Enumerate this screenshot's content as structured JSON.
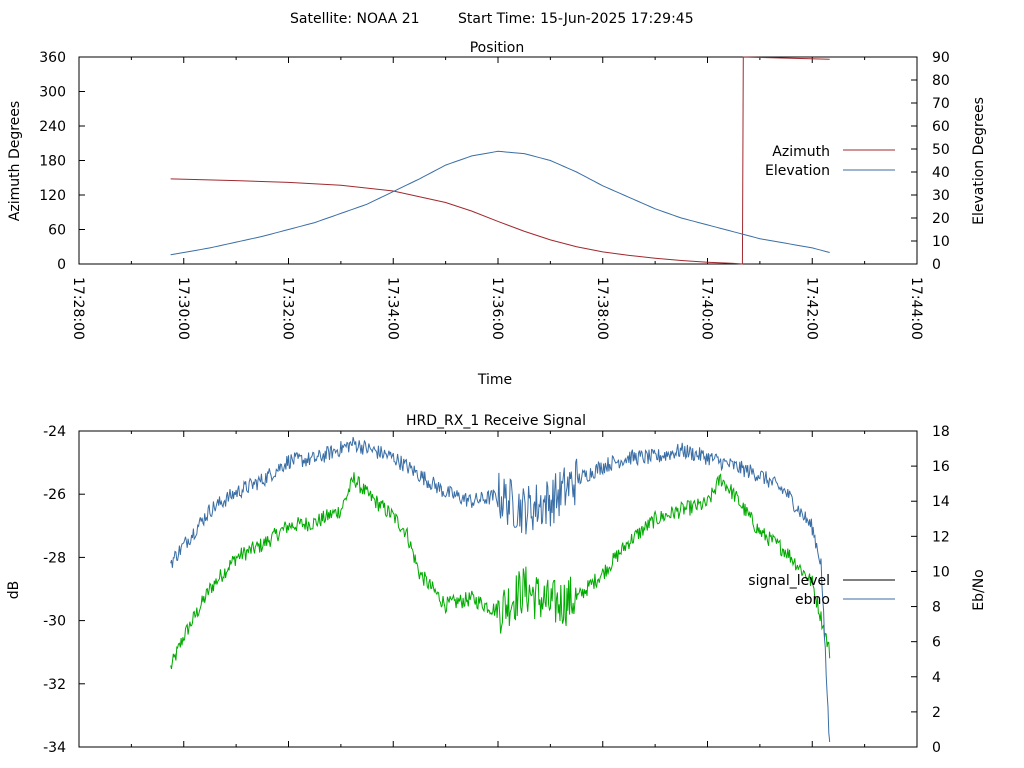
{
  "header": {
    "satellite_label": "Satellite: NOAA 21",
    "start_time_label": "Start Time: 15-Jun-2025 17:29:45"
  },
  "colors": {
    "azimuth": "#a0292e",
    "elevation": "#3a6ea5",
    "signal_level": "#000000",
    "ebno": "#3a6ea5",
    "signal_trace_green": "#00aa00",
    "axis": "#000000"
  },
  "chart_data": [
    {
      "type": "line",
      "title": "Position",
      "xlabel": "Time",
      "ylabel": "Azimuth Degrees",
      "y2label": "Elevation Degrees",
      "x_ticks": [
        "17:28:00",
        "17:30:00",
        "17:32:00",
        "17:34:00",
        "17:36:00",
        "17:38:00",
        "17:40:00",
        "17:42:00",
        "17:44:00"
      ],
      "x_range": [
        "17:28:00",
        "17:44:00"
      ],
      "ylim": [
        0,
        360
      ],
      "y2lim": [
        0,
        90
      ],
      "y_ticks": [
        "0",
        "60",
        "120",
        "180",
        "240",
        "300",
        "360"
      ],
      "y2_ticks": [
        "0",
        "10",
        "20",
        "30",
        "40",
        "50",
        "60",
        "70",
        "80",
        "90"
      ],
      "legend_position": "right",
      "series": [
        {
          "name": "Azimuth",
          "axis": "left",
          "points": [
            [
              "17:29:45",
              148
            ],
            [
              "17:31:00",
              145
            ],
            [
              "17:32:00",
              142
            ],
            [
              "17:33:00",
              137
            ],
            [
              "17:34:00",
              127
            ],
            [
              "17:35:00",
              107
            ],
            [
              "17:35:30",
              92
            ],
            [
              "17:36:00",
              74
            ],
            [
              "17:36:30",
              57
            ],
            [
              "17:37:00",
              42
            ],
            [
              "17:37:30",
              30
            ],
            [
              "17:38:00",
              21
            ],
            [
              "17:38:30",
              15
            ],
            [
              "17:39:00",
              10
            ],
            [
              "17:39:30",
              6
            ],
            [
              "17:40:00",
              3
            ],
            [
              "17:40:30",
              1
            ],
            [
              "17:40:40",
              0
            ],
            [
              "17:40:41",
              360
            ],
            [
              "17:41:30",
              358
            ],
            [
              "17:42:20",
              356
            ]
          ]
        },
        {
          "name": "Elevation",
          "axis": "right",
          "points": [
            [
              "17:29:45",
              4
            ],
            [
              "17:30:30",
              7
            ],
            [
              "17:31:30",
              12
            ],
            [
              "17:32:30",
              18
            ],
            [
              "17:33:30",
              26
            ],
            [
              "17:34:30",
              37
            ],
            [
              "17:35:00",
              43
            ],
            [
              "17:35:30",
              47
            ],
            [
              "17:36:00",
              49
            ],
            [
              "17:36:30",
              48
            ],
            [
              "17:37:00",
              45
            ],
            [
              "17:37:30",
              40
            ],
            [
              "17:38:00",
              34
            ],
            [
              "17:38:30",
              29
            ],
            [
              "17:39:00",
              24
            ],
            [
              "17:39:30",
              20
            ],
            [
              "17:40:00",
              17
            ],
            [
              "17:40:30",
              14
            ],
            [
              "17:41:00",
              11
            ],
            [
              "17:41:30",
              9
            ],
            [
              "17:42:00",
              7
            ],
            [
              "17:42:20",
              5
            ]
          ]
        }
      ]
    },
    {
      "type": "line",
      "title": "HRD_RX_1 Receive Signal",
      "xlabel": "",
      "ylabel": "dB",
      "y2label": "Eb/No",
      "ylim": [
        -34,
        -24
      ],
      "y2lim": [
        0,
        18
      ],
      "y_ticks": [
        "-24",
        "-26",
        "-28",
        "-30",
        "-32",
        "-34"
      ],
      "y2_ticks": [
        "0",
        "2",
        "4",
        "6",
        "8",
        "10",
        "12",
        "14",
        "16",
        "18"
      ],
      "x_range": [
        "17:28:00",
        "17:44:00"
      ],
      "legend_position": "right",
      "series": [
        {
          "name": "signal_level",
          "axis": "left",
          "drawn_color": "green",
          "points": [
            [
              "17:29:45",
              -31.5
            ],
            [
              "17:30:00",
              -30.5
            ],
            [
              "17:30:30",
              -29
            ],
            [
              "17:31:00",
              -28
            ],
            [
              "17:31:30",
              -27.6
            ],
            [
              "17:32:00",
              -27
            ],
            [
              "17:32:30",
              -26.9
            ],
            [
              "17:33:00",
              -26.5
            ],
            [
              "17:33:15",
              -25.5
            ],
            [
              "17:33:30",
              -26
            ],
            [
              "17:34:00",
              -26.7
            ],
            [
              "17:34:15",
              -27.2
            ],
            [
              "17:34:30",
              -28.5
            ],
            [
              "17:35:00",
              -29.5
            ],
            [
              "17:35:30",
              -29.3
            ],
            [
              "17:36:00",
              -29.7
            ],
            [
              "17:36:30",
              -29
            ],
            [
              "17:37:00",
              -29.5
            ],
            [
              "17:37:30",
              -29.3
            ],
            [
              "17:38:00",
              -28.5
            ],
            [
              "17:38:30",
              -27.5
            ],
            [
              "17:39:00",
              -26.8
            ],
            [
              "17:39:30",
              -26.5
            ],
            [
              "17:40:00",
              -26.3
            ],
            [
              "17:40:15",
              -25.5
            ],
            [
              "17:40:30",
              -26
            ],
            [
              "17:41:00",
              -27.2
            ],
            [
              "17:41:30",
              -27.8
            ],
            [
              "17:42:00",
              -28.8
            ],
            [
              "17:42:20",
              -31
            ]
          ]
        },
        {
          "name": "ebno",
          "axis": "right",
          "points": [
            [
              "17:29:45",
              10.5
            ],
            [
              "17:30:00",
              11.5
            ],
            [
              "17:30:30",
              13.5
            ],
            [
              "17:31:00",
              14.5
            ],
            [
              "17:31:30",
              15.2
            ],
            [
              "17:32:00",
              16.3
            ],
            [
              "17:32:30",
              16.4
            ],
            [
              "17:33:00",
              17
            ],
            [
              "17:33:15",
              17.3
            ],
            [
              "17:33:30",
              17
            ],
            [
              "17:34:00",
              16.5
            ],
            [
              "17:34:30",
              15.5
            ],
            [
              "17:35:00",
              14.5
            ],
            [
              "17:35:30",
              14
            ],
            [
              "17:36:00",
              14.3
            ],
            [
              "17:36:30",
              13.5
            ],
            [
              "17:37:00",
              14
            ],
            [
              "17:37:30",
              15.2
            ],
            [
              "17:38:00",
              16
            ],
            [
              "17:38:30",
              16.5
            ],
            [
              "17:39:00",
              16.5
            ],
            [
              "17:39:30",
              16.9
            ],
            [
              "17:40:00",
              16.5
            ],
            [
              "17:40:30",
              16
            ],
            [
              "17:41:00",
              15.5
            ],
            [
              "17:41:30",
              14.5
            ],
            [
              "17:42:00",
              12.5
            ],
            [
              "17:42:10",
              10.5
            ],
            [
              "17:42:20",
              0
            ]
          ]
        }
      ]
    }
  ]
}
